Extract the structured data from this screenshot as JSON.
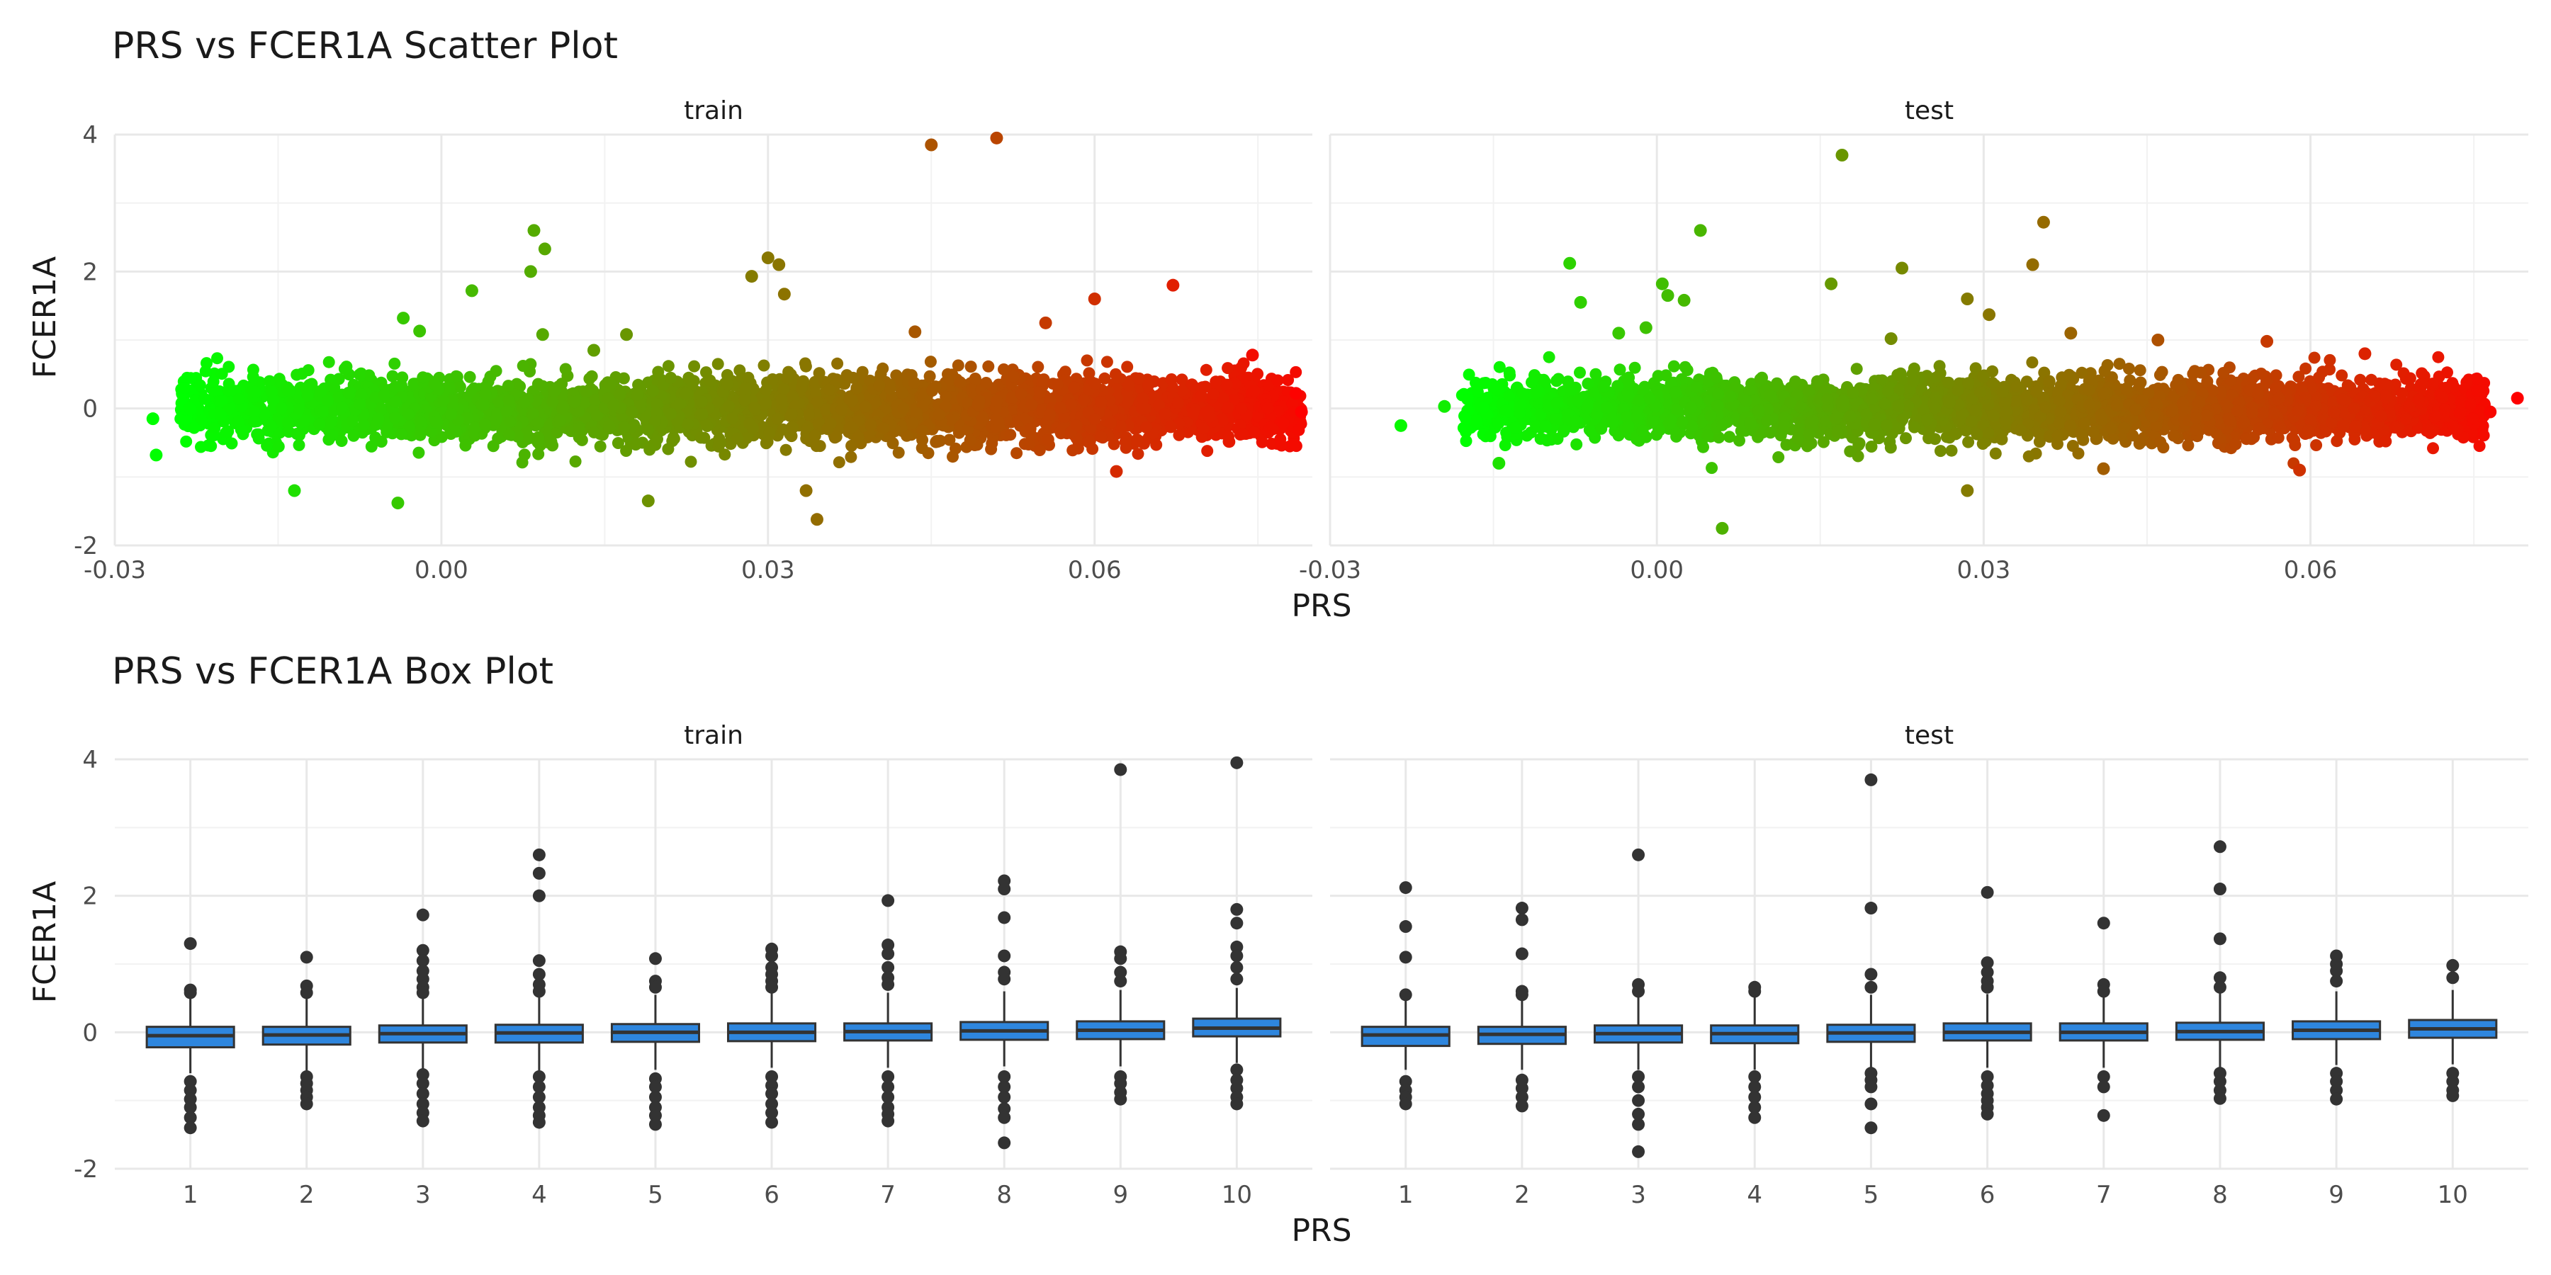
{
  "charts": {
    "scatter": {
      "title": "PRS vs FCER1A Scatter Plot",
      "xlabel": "PRS",
      "ylabel": "FCER1A"
    },
    "box": {
      "title": "PRS vs FCER1A Box Plot",
      "xlabel": "PRS",
      "ylabel": "FCER1A"
    }
  },
  "chart_data": [
    {
      "type": "scatter",
      "title": "PRS vs FCER1A Scatter Plot",
      "xlabel": "PRS",
      "ylabel": "FCER1A",
      "xlim": [
        -0.03,
        0.08
      ],
      "ylim": [
        -2,
        4
      ],
      "x_ticks": [
        "-0.03",
        "0.00",
        "0.03",
        "0.06"
      ],
      "y_ticks": [
        "4",
        "2",
        "0",
        "-2"
      ],
      "grid": true,
      "color_scale": {
        "low": "#00ff00",
        "high": "#ff0000",
        "mapped_to": "PRS"
      },
      "panels": [
        {
          "name": "train",
          "density_band": {
            "x_range": [
              -0.024,
              0.079
            ],
            "y_center": 0.0,
            "y_spread": 0.3
          },
          "notable_points": [
            {
              "x": -0.0265,
              "y": -0.15
            },
            {
              "x": -0.0262,
              "y": -0.68
            },
            {
              "x": -0.0135,
              "y": -1.2
            },
            {
              "x": -0.004,
              "y": -1.38
            },
            {
              "x": -0.0035,
              "y": 1.32
            },
            {
              "x": -0.002,
              "y": 1.13
            },
            {
              "x": 0.0028,
              "y": 1.72
            },
            {
              "x": 0.0085,
              "y": 2.6
            },
            {
              "x": 0.0095,
              "y": 2.33
            },
            {
              "x": 0.0082,
              "y": 2.0
            },
            {
              "x": 0.0093,
              "y": 1.08
            },
            {
              "x": 0.014,
              "y": 0.85
            },
            {
              "x": 0.017,
              "y": 1.08
            },
            {
              "x": 0.0285,
              "y": 1.93
            },
            {
              "x": 0.03,
              "y": 2.2
            },
            {
              "x": 0.031,
              "y": 2.1
            },
            {
              "x": 0.0315,
              "y": 1.67
            },
            {
              "x": 0.0345,
              "y": -1.62
            },
            {
              "x": 0.0335,
              "y": -1.2
            },
            {
              "x": 0.019,
              "y": -1.35
            },
            {
              "x": 0.0435,
              "y": 1.12
            },
            {
              "x": 0.045,
              "y": 3.85
            },
            {
              "x": 0.051,
              "y": 3.95
            },
            {
              "x": 0.0555,
              "y": 1.25
            },
            {
              "x": 0.06,
              "y": 1.6
            },
            {
              "x": 0.0672,
              "y": 1.8
            },
            {
              "x": 0.062,
              "y": -0.92
            },
            {
              "x": 0.0745,
              "y": 0.78
            },
            {
              "x": 0.079,
              "y": -0.05
            },
            {
              "x": 0.0785,
              "y": 0.22
            }
          ]
        },
        {
          "name": "test",
          "density_band": {
            "x_range": [
              -0.018,
              0.076
            ],
            "y_center": 0.0,
            "y_spread": 0.28
          },
          "notable_points": [
            {
              "x": -0.0235,
              "y": -0.25
            },
            {
              "x": -0.0195,
              "y": 0.03
            },
            {
              "x": -0.0145,
              "y": -0.8
            },
            {
              "x": -0.008,
              "y": 2.12
            },
            {
              "x": -0.007,
              "y": 1.55
            },
            {
              "x": -0.0035,
              "y": 1.1
            },
            {
              "x": -0.001,
              "y": 1.18
            },
            {
              "x": 0.0005,
              "y": 1.82
            },
            {
              "x": 0.001,
              "y": 1.65
            },
            {
              "x": 0.0025,
              "y": 1.58
            },
            {
              "x": 0.004,
              "y": 2.6
            },
            {
              "x": 0.006,
              "y": -1.75
            },
            {
              "x": 0.016,
              "y": 1.82
            },
            {
              "x": 0.017,
              "y": 3.7
            },
            {
              "x": 0.0225,
              "y": 2.05
            },
            {
              "x": 0.0215,
              "y": 1.02
            },
            {
              "x": 0.0285,
              "y": 1.6
            },
            {
              "x": 0.0305,
              "y": 1.37
            },
            {
              "x": 0.0345,
              "y": 2.1
            },
            {
              "x": 0.0355,
              "y": 2.72
            },
            {
              "x": 0.038,
              "y": 1.1
            },
            {
              "x": 0.041,
              "y": -0.88
            },
            {
              "x": 0.0285,
              "y": -1.2
            },
            {
              "x": 0.046,
              "y": 1.0
            },
            {
              "x": 0.056,
              "y": 0.98
            },
            {
              "x": 0.059,
              "y": -0.9
            },
            {
              "x": 0.065,
              "y": 0.8
            },
            {
              "x": 0.0765,
              "y": -0.05
            },
            {
              "x": 0.079,
              "y": 0.15
            }
          ]
        }
      ]
    },
    {
      "type": "box",
      "title": "PRS vs FCER1A Box Plot",
      "xlabel": "PRS",
      "ylabel": "FCER1A",
      "categories": [
        "1",
        "2",
        "3",
        "4",
        "5",
        "6",
        "7",
        "8",
        "9",
        "10"
      ],
      "ylim": [
        -2,
        4
      ],
      "y_ticks": [
        "4",
        "2",
        "0",
        "-2"
      ],
      "grid": true,
      "box_color": "#2e86de",
      "panels": [
        {
          "name": "train",
          "boxes": [
            {
              "q1": -0.22,
              "median": -0.05,
              "q3": 0.08,
              "lo": -0.6,
              "hi": 0.55,
              "outliers": [
                1.3,
                0.62,
                0.58,
                -0.72,
                -0.85,
                -0.98,
                -1.1,
                -1.25,
                -1.4
              ]
            },
            {
              "q1": -0.18,
              "median": -0.04,
              "q3": 0.08,
              "lo": -0.58,
              "hi": 0.5,
              "outliers": [
                1.1,
                0.68,
                0.58,
                -0.65,
                -0.75,
                -0.85,
                -0.95,
                -1.05
              ]
            },
            {
              "q1": -0.15,
              "median": -0.02,
              "q3": 0.1,
              "lo": -0.55,
              "hi": 0.52,
              "outliers": [
                1.72,
                1.2,
                1.05,
                0.9,
                0.78,
                0.66,
                0.58,
                -0.62,
                -0.75,
                -0.9,
                -1.05,
                -1.18,
                -1.3
              ]
            },
            {
              "q1": -0.15,
              "median": -0.01,
              "q3": 0.11,
              "lo": -0.56,
              "hi": 0.55,
              "outliers": [
                2.6,
                2.33,
                2.0,
                1.05,
                0.85,
                0.7,
                0.6,
                -0.65,
                -0.8,
                -0.95,
                -1.1,
                -1.22,
                -1.32
              ]
            },
            {
              "q1": -0.14,
              "median": 0.0,
              "q3": 0.12,
              "lo": -0.55,
              "hi": 0.55,
              "outliers": [
                1.08,
                0.75,
                0.66,
                -0.68,
                -0.8,
                -0.95,
                -1.1,
                -1.22,
                -1.35
              ]
            },
            {
              "q1": -0.13,
              "median": 0.0,
              "q3": 0.13,
              "lo": -0.52,
              "hi": 0.58,
              "outliers": [
                1.22,
                1.12,
                0.95,
                0.85,
                0.75,
                0.66,
                -0.65,
                -0.78,
                -0.9,
                -1.05,
                -1.18,
                -1.32
              ]
            },
            {
              "q1": -0.12,
              "median": 0.01,
              "q3": 0.13,
              "lo": -0.52,
              "hi": 0.58,
              "outliers": [
                1.93,
                1.28,
                1.15,
                0.95,
                0.8,
                0.7,
                -0.65,
                -0.8,
                -0.95,
                -1.1,
                -1.2,
                -1.3
              ]
            },
            {
              "q1": -0.11,
              "median": 0.02,
              "q3": 0.15,
              "lo": -0.5,
              "hi": 0.6,
              "outliers": [
                2.22,
                2.1,
                1.68,
                1.12,
                0.88,
                0.78,
                -0.65,
                -0.8,
                -0.95,
                -1.12,
                -1.25,
                -1.62
              ]
            },
            {
              "q1": -0.1,
              "median": 0.03,
              "q3": 0.16,
              "lo": -0.5,
              "hi": 0.62,
              "outliers": [
                3.85,
                1.18,
                1.08,
                0.88,
                0.75,
                -0.65,
                -0.75,
                -0.88,
                -0.98
              ]
            },
            {
              "q1": -0.06,
              "median": 0.06,
              "q3": 0.2,
              "lo": -0.45,
              "hi": 0.65,
              "outliers": [
                3.95,
                1.8,
                1.6,
                1.25,
                1.12,
                0.95,
                0.78,
                -0.55,
                -0.7,
                -0.82,
                -0.95,
                -1.05
              ]
            }
          ]
        },
        {
          "name": "test",
          "boxes": [
            {
              "q1": -0.2,
              "median": -0.04,
              "q3": 0.08,
              "lo": -0.55,
              "hi": 0.5,
              "outliers": [
                2.12,
                1.55,
                1.1,
                0.55,
                -0.72,
                -0.85,
                -0.95,
                -1.05
              ]
            },
            {
              "q1": -0.17,
              "median": -0.03,
              "q3": 0.08,
              "lo": -0.55,
              "hi": 0.5,
              "outliers": [
                1.82,
                1.65,
                1.15,
                0.6,
                0.55,
                -0.7,
                -0.82,
                -0.95,
                -1.08
              ]
            },
            {
              "q1": -0.15,
              "median": -0.02,
              "q3": 0.1,
              "lo": -0.55,
              "hi": 0.52,
              "outliers": [
                2.6,
                0.7,
                0.6,
                -0.65,
                -0.8,
                -1.0,
                -1.2,
                -1.35,
                -1.75
              ]
            },
            {
              "q1": -0.16,
              "median": -0.02,
              "q3": 0.1,
              "lo": -0.55,
              "hi": 0.52,
              "outliers": [
                0.66,
                0.6,
                -0.65,
                -0.8,
                -0.95,
                -1.1,
                -1.25
              ]
            },
            {
              "q1": -0.14,
              "median": -0.01,
              "q3": 0.11,
              "lo": -0.55,
              "hi": 0.55,
              "outliers": [
                3.7,
                1.82,
                0.85,
                0.66,
                -0.6,
                -0.7,
                -0.8,
                -1.05,
                -1.4
              ]
            },
            {
              "q1": -0.12,
              "median": 0.0,
              "q3": 0.13,
              "lo": -0.52,
              "hi": 0.56,
              "outliers": [
                2.05,
                1.02,
                0.88,
                0.75,
                0.66,
                -0.65,
                -0.78,
                -0.9,
                -1.0,
                -1.1,
                -1.2
              ]
            },
            {
              "q1": -0.12,
              "median": 0.0,
              "q3": 0.13,
              "lo": -0.52,
              "hi": 0.56,
              "outliers": [
                1.6,
                0.7,
                0.6,
                -0.65,
                -0.8,
                -1.22
              ]
            },
            {
              "q1": -0.11,
              "median": 0.01,
              "q3": 0.14,
              "lo": -0.52,
              "hi": 0.58,
              "outliers": [
                2.72,
                2.1,
                1.37,
                0.8,
                0.66,
                -0.6,
                -0.72,
                -0.85,
                -0.97
              ]
            },
            {
              "q1": -0.1,
              "median": 0.03,
              "q3": 0.16,
              "lo": -0.48,
              "hi": 0.6,
              "outliers": [
                1.12,
                1.0,
                0.9,
                0.75,
                -0.6,
                -0.72,
                -0.85,
                -0.98
              ]
            },
            {
              "q1": -0.08,
              "median": 0.05,
              "q3": 0.18,
              "lo": -0.47,
              "hi": 0.62,
              "outliers": [
                0.98,
                0.8,
                -0.6,
                -0.72,
                -0.85,
                -0.93
              ]
            }
          ]
        }
      ]
    }
  ]
}
